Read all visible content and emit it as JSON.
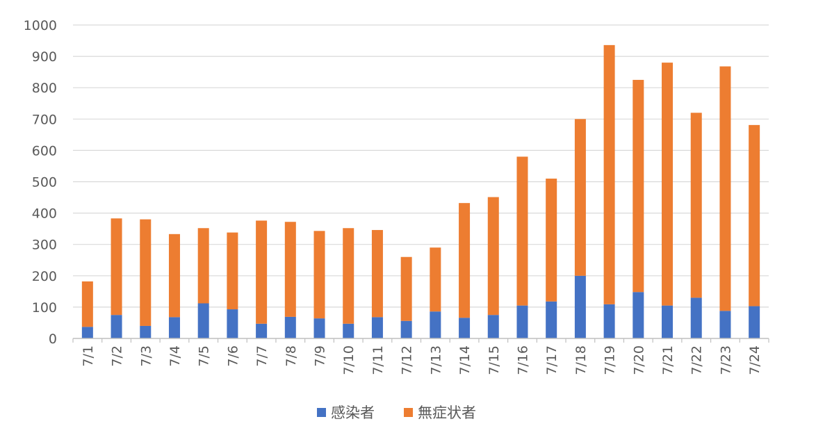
{
  "chart_data": {
    "type": "bar",
    "stacked": true,
    "categories": [
      "7/1",
      "7/2",
      "7/3",
      "7/4",
      "7/5",
      "7/6",
      "7/7",
      "7/8",
      "7/9",
      "7/10",
      "7/11",
      "7/12",
      "7/13",
      "7/14",
      "7/15",
      "7/16",
      "7/17",
      "7/18",
      "7/19",
      "7/20",
      "7/21",
      "7/22",
      "7/23",
      "7/24"
    ],
    "series": [
      {
        "name": "感染者",
        "color": "#4472C4",
        "values": [
          37,
          75,
          40,
          68,
          112,
          93,
          47,
          69,
          64,
          47,
          68,
          56,
          86,
          66,
          75,
          105,
          118,
          200,
          109,
          148,
          105,
          130,
          88,
          103
        ]
      },
      {
        "name": "無症状者",
        "color": "#ED7D31",
        "values": [
          145,
          308,
          340,
          265,
          240,
          245,
          329,
          303,
          279,
          305,
          278,
          204,
          204,
          366,
          376,
          475,
          392,
          500,
          827,
          677,
          775,
          590,
          780,
          578
        ]
      }
    ],
    "ylim": [
      0,
      1000
    ],
    "yticks": [
      0,
      100,
      200,
      300,
      400,
      500,
      600,
      700,
      800,
      900,
      1000
    ],
    "ytick_labels": [
      "0",
      "100",
      "200",
      "300",
      "400",
      "500",
      "600",
      "700",
      "800",
      "900",
      "1000"
    ],
    "grid": true,
    "legend_position": "bottom"
  }
}
